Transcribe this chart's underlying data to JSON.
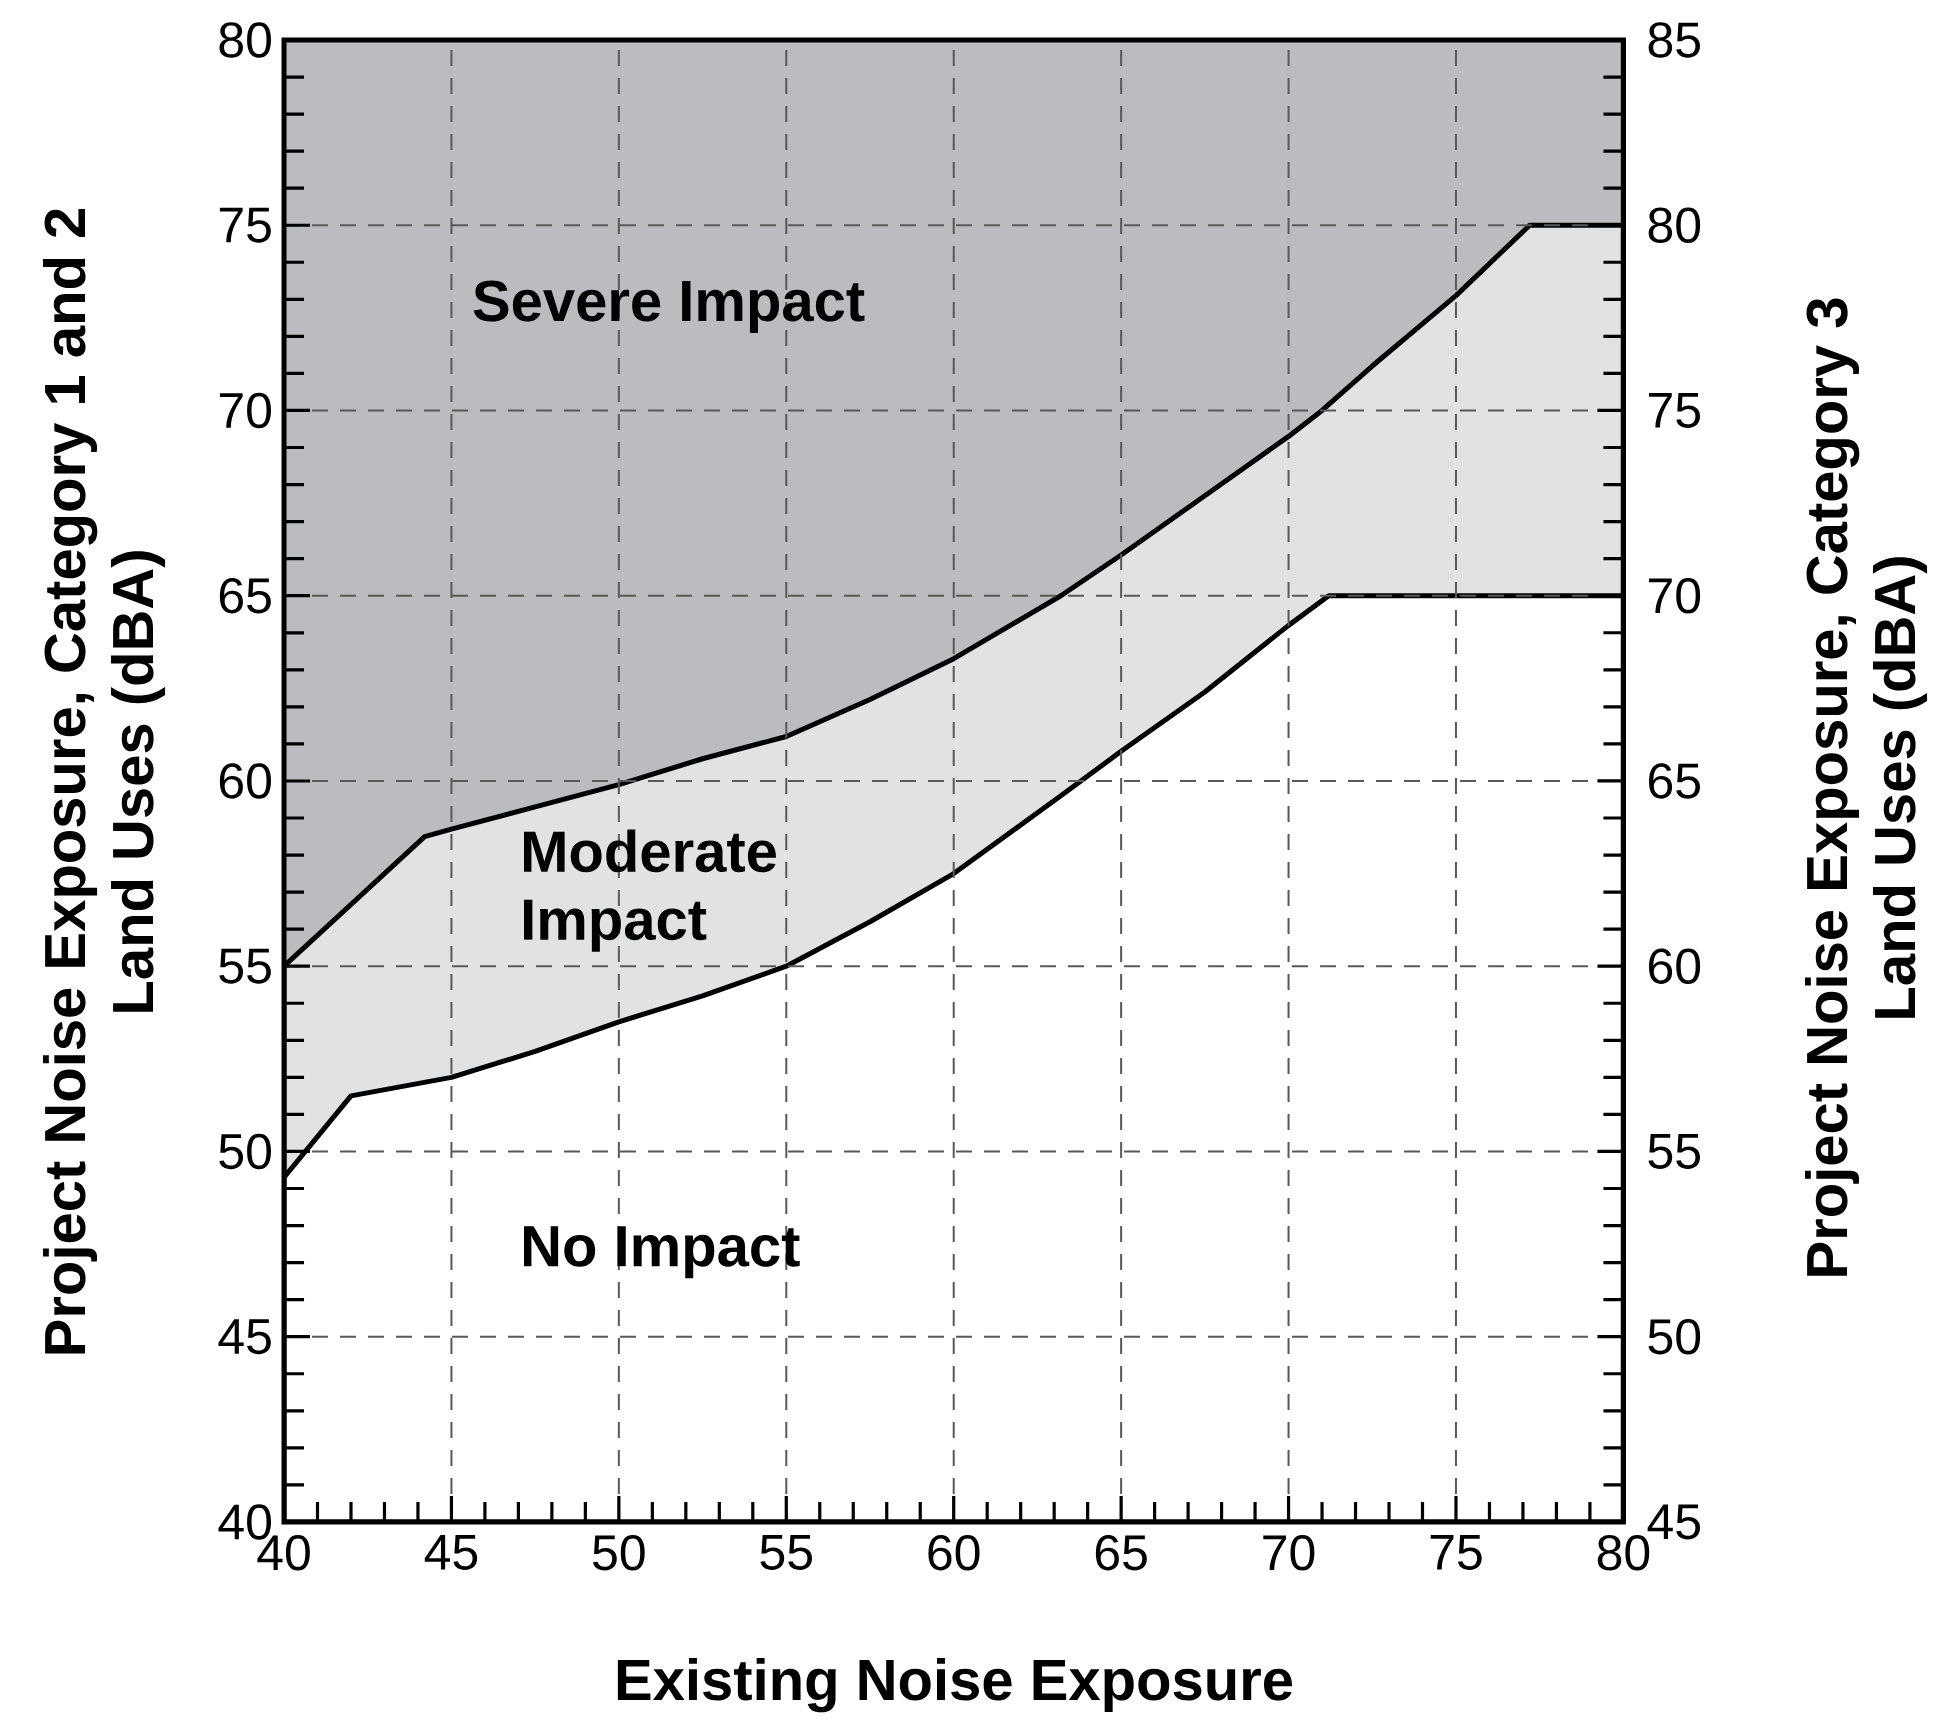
{
  "chart_data": {
    "type": "area",
    "xlabel": "Existing Noise Exposure",
    "ylabel": "Project Noise Exposure, Category 1 and 2 Land Uses (dBA)",
    "y2label": "Project Noise Exposure, Category 3 Land Uses (dBA)",
    "series": [
      {
        "name": "Moderate Impact",
        "color": "#e1e2e4",
        "x": [
          40,
          44.2,
          45,
          47.5,
          50,
          52.5,
          55,
          57.5,
          60,
          63.2,
          65,
          67.5,
          70,
          71,
          72.5,
          75,
          77.2,
          80
        ],
        "values": [
          55,
          58.5,
          58.7,
          59.3,
          59.9,
          60.6,
          61.2,
          62.2,
          63.3,
          65,
          66.1,
          67.7,
          69.3,
          70,
          71.2,
          73.1,
          75,
          75
        ]
      },
      {
        "name": "No Impact",
        "color": "#ffffff",
        "x": [
          40,
          42,
          45,
          47.5,
          50,
          52.5,
          55,
          57.5,
          60,
          63.2,
          65,
          67.5,
          70,
          71.2,
          80
        ],
        "values": [
          49.3,
          51.5,
          52.0,
          52.7,
          53.5,
          54.2,
          55.0,
          56.2,
          57.5,
          59.6,
          60.8,
          62.4,
          64.2,
          65,
          65
        ]
      }
    ],
    "annotations": [
      "Severe Impact"
    ],
    "xlim": [
      40,
      80
    ],
    "xticks": [
      40,
      45,
      50,
      55,
      60,
      65,
      70,
      75,
      80
    ],
    "ylim": [
      40,
      80
    ],
    "yticks": [
      40,
      45,
      50,
      55,
      60,
      65,
      70,
      75,
      80
    ],
    "y2lim": [
      45,
      85
    ],
    "y2ticks": [
      45,
      50,
      55,
      60,
      65,
      70,
      75,
      80,
      85
    ],
    "grid": true
  }
}
